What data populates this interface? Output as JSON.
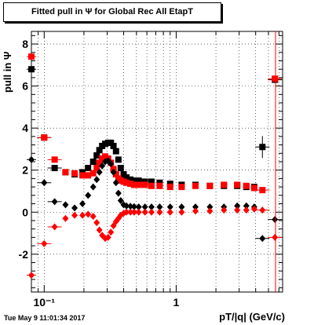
{
  "title": "Fitted pull in Ψ for Global Rec All EtapT",
  "footer": "Tue May 9 11:01:34 2017",
  "chart_data": {
    "type": "scatter",
    "title": "Fitted pull in Ψ for Global Rec All EtapT",
    "xlabel": "pT/|q| (GeV/c)",
    "ylabel": "pull in Ψ",
    "xscale": "log",
    "xlim": [
      0.08,
      6.4
    ],
    "ylim": [
      -3.8,
      8.6
    ],
    "grid": true,
    "x_tick_labels": [
      {
        "value": 0.1,
        "label": "10⁻¹"
      },
      {
        "value": 1,
        "label": "1"
      }
    ],
    "y_ticks": [
      -2,
      0,
      2,
      4,
      6,
      8
    ],
    "series": [
      {
        "marker": "square",
        "color": "#000000",
        "x": [
          0.08,
          0.1,
          0.12,
          0.145,
          0.17,
          0.195,
          0.215,
          0.235,
          0.25,
          0.262,
          0.275,
          0.29,
          0.305,
          0.32,
          0.335,
          0.35,
          0.365,
          0.38,
          0.4,
          0.42,
          0.45,
          0.48,
          0.52,
          0.58,
          0.65,
          0.75,
          0.9,
          1.1,
          1.4,
          1.8,
          2.3,
          2.9,
          3.4,
          3.9,
          4.5,
          5.6
        ],
        "y": [
          6.8,
          3.55,
          2.1,
          1.9,
          1.8,
          1.9,
          2.1,
          2.4,
          2.7,
          2.95,
          3.15,
          3.25,
          3.3,
          3.3,
          3.15,
          2.9,
          2.5,
          2.1,
          1.8,
          1.65,
          1.55,
          1.5,
          1.5,
          1.45,
          1.45,
          1.4,
          1.35,
          1.3,
          1.3,
          1.25,
          1.25,
          1.25,
          1.2,
          1.2,
          3.1,
          6.3
        ]
      },
      {
        "marker": "square",
        "color": "#ff0000",
        "x": [
          0.08,
          0.1,
          0.12,
          0.145,
          0.17,
          0.195,
          0.215,
          0.235,
          0.25,
          0.262,
          0.275,
          0.29,
          0.305,
          0.32,
          0.335,
          0.35,
          0.365,
          0.38,
          0.4,
          0.42,
          0.45,
          0.48,
          0.52,
          0.58,
          0.65,
          0.75,
          0.9,
          1.1,
          1.4,
          1.8,
          2.3,
          2.9,
          3.4,
          3.9,
          4.5,
          5.6
        ],
        "y": [
          7.4,
          3.55,
          2.5,
          1.9,
          1.85,
          1.75,
          1.75,
          1.85,
          2.1,
          2.35,
          2.55,
          2.65,
          2.55,
          2.35,
          2.05,
          1.8,
          1.6,
          1.5,
          1.45,
          1.4,
          1.35,
          1.3,
          1.3,
          1.3,
          1.25,
          1.25,
          1.2,
          1.2,
          1.25,
          1.25,
          1.3,
          1.3,
          1.25,
          1.15,
          1.05,
          6.35
        ]
      },
      {
        "marker": "diamond",
        "color": "#000000",
        "x": [
          0.08,
          0.1,
          0.12,
          0.145,
          0.17,
          0.195,
          0.215,
          0.235,
          0.25,
          0.262,
          0.275,
          0.29,
          0.305,
          0.32,
          0.335,
          0.35,
          0.365,
          0.38,
          0.4,
          0.42,
          0.45,
          0.48,
          0.52,
          0.58,
          0.65,
          0.75,
          0.9,
          1.1,
          1.4,
          1.8,
          2.3,
          2.9,
          3.4,
          3.9,
          4.5,
          5.6
        ],
        "y": [
          2.5,
          1.4,
          0.5,
          0.35,
          0.2,
          0.4,
          0.8,
          1.2,
          1.55,
          1.9,
          2.2,
          2.4,
          2.45,
          2.3,
          1.9,
          1.4,
          0.9,
          0.55,
          0.35,
          0.3,
          0.28,
          0.26,
          0.25,
          0.25,
          0.25,
          0.25,
          0.25,
          0.25,
          0.25,
          0.25,
          0.25,
          0.3,
          0.3,
          0.25,
          -1.25,
          -0.35
        ]
      },
      {
        "marker": "diamond",
        "color": "#ff0000",
        "x": [
          0.08,
          0.1,
          0.12,
          0.145,
          0.17,
          0.195,
          0.215,
          0.235,
          0.25,
          0.262,
          0.275,
          0.29,
          0.305,
          0.32,
          0.335,
          0.35,
          0.365,
          0.38,
          0.4,
          0.42,
          0.45,
          0.48,
          0.52,
          0.58,
          0.65,
          0.75,
          0.9,
          1.1,
          1.4,
          1.8,
          2.3,
          2.9,
          3.4,
          3.9,
          4.5,
          5.6
        ],
        "y": [
          -3.0,
          -1.5,
          -0.7,
          -0.3,
          -0.15,
          -0.15,
          -0.1,
          -0.2,
          -0.5,
          -0.85,
          -1.1,
          -1.25,
          -1.2,
          -0.95,
          -0.65,
          -0.45,
          -0.3,
          -0.15,
          -0.05,
          0.0,
          0.0,
          0.0,
          0.0,
          0.0,
          0.0,
          0.0,
          0.0,
          0.0,
          0.05,
          0.05,
          0.1,
          0.1,
          0.1,
          0.15,
          0.1,
          -1.2
        ]
      }
    ]
  }
}
